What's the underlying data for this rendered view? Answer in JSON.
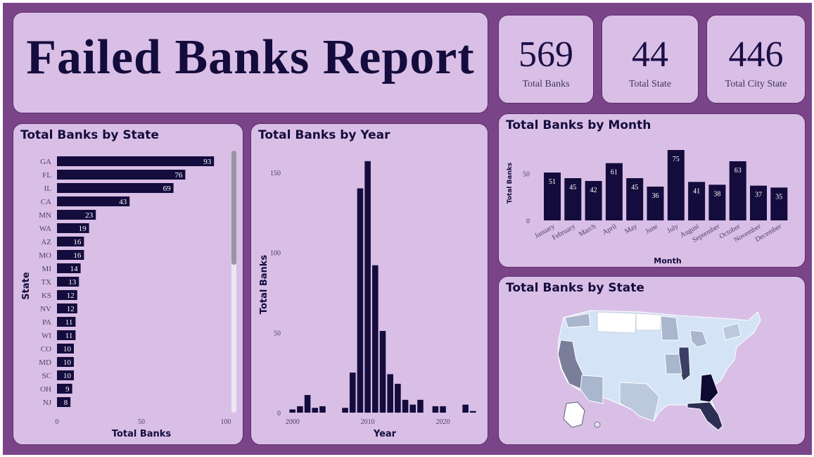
{
  "header": {
    "title": "Failed Banks Report"
  },
  "kpis": {
    "total_banks": {
      "value": "569",
      "label": "Total Banks"
    },
    "total_state": {
      "value": "44",
      "label": "Total State"
    },
    "total_city_state": {
      "value": "446",
      "label": "Total City State"
    }
  },
  "colors": {
    "bar": "#140c3d",
    "panel": "#d9bfe6",
    "frame": "#7a4489"
  },
  "state_bar": {
    "title": "Total Banks by State",
    "chart_data": {
      "type": "bar",
      "orientation": "horizontal",
      "categories": [
        "GA",
        "FL",
        "IL",
        "CA",
        "MN",
        "WA",
        "AZ",
        "MO",
        "MI",
        "TX",
        "KS",
        "NV",
        "PA",
        "WI",
        "CO",
        "MD",
        "SC",
        "OH",
        "NJ"
      ],
      "values": [
        93,
        76,
        69,
        43,
        23,
        19,
        16,
        16,
        14,
        13,
        12,
        12,
        11,
        11,
        10,
        10,
        10,
        9,
        8
      ],
      "xlabel": "Total Banks",
      "ylabel": "State",
      "xlim": [
        0,
        100
      ],
      "x_ticks": [
        "0",
        "50",
        "100"
      ]
    }
  },
  "year_bar": {
    "title": "Total Banks by Year",
    "chart_data": {
      "type": "bar",
      "x": [
        2000,
        2001,
        2002,
        2003,
        2004,
        2007,
        2008,
        2009,
        2010,
        2011,
        2012,
        2013,
        2014,
        2015,
        2016,
        2017,
        2019,
        2020,
        2023,
        2024
      ],
      "values": [
        2,
        4,
        11,
        3,
        4,
        3,
        25,
        140,
        157,
        92,
        51,
        24,
        18,
        8,
        5,
        8,
        4,
        4,
        5,
        1
      ],
      "xlabel": "Year",
      "ylabel": "Total Banks",
      "xlim": [
        1999,
        2025
      ],
      "ylim": [
        0,
        160
      ],
      "x_ticks": [
        "2000",
        "2010",
        "2020"
      ],
      "y_ticks": [
        "0",
        "50",
        "100",
        "150"
      ]
    }
  },
  "month_bar": {
    "title": "Total Banks by Month",
    "chart_data": {
      "type": "bar",
      "categories": [
        "January",
        "February",
        "March",
        "April",
        "May",
        "June",
        "July",
        "August",
        "September",
        "October",
        "November",
        "December"
      ],
      "values": [
        51,
        45,
        42,
        61,
        45,
        36,
        75,
        41,
        38,
        63,
        37,
        35
      ],
      "xlabel": "Month",
      "ylabel": "Total Banks",
      "ylim": [
        0,
        75
      ],
      "y_ticks": [
        "0",
        "50"
      ]
    }
  },
  "map": {
    "title": "Total Banks by State",
    "icon": "us-choropleth-map"
  }
}
